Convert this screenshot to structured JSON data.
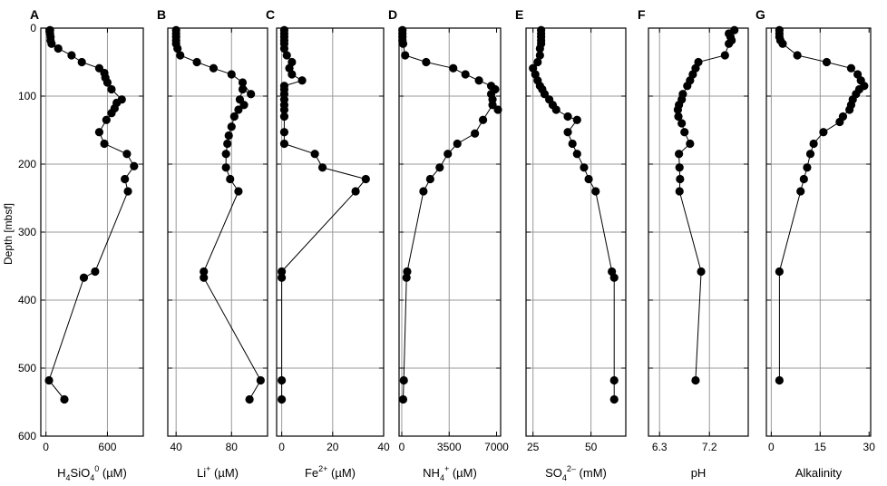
{
  "figure": {
    "ylabel": "Depth [mbsf]",
    "y_ticks": [
      0,
      100,
      200,
      300,
      400,
      500,
      600
    ],
    "y_range": [
      0,
      600
    ],
    "grid_color": "#999999",
    "line_color": "#000000",
    "marker_color": "#000000"
  },
  "chart_data": [
    {
      "type": "line",
      "panel": "A",
      "xlabel_main": "H",
      "xlabel_sub": "4",
      "xlabel_main2": "SiO",
      "xlabel_sub2": "4",
      "xlabel_sup": "0",
      "xlabel_unit": " (µM)",
      "xlim": [
        -50,
        950
      ],
      "x_ticks": [
        0,
        600
      ],
      "x_grid": [
        0,
        600
      ],
      "points": [
        {
          "x": 40,
          "y": 3
        },
        {
          "x": 40,
          "y": 8
        },
        {
          "x": 45,
          "y": 13
        },
        {
          "x": 45,
          "y": 18
        },
        {
          "x": 55,
          "y": 23
        },
        {
          "x": 120,
          "y": 30
        },
        {
          "x": 250,
          "y": 40
        },
        {
          "x": 350,
          "y": 50
        },
        {
          "x": 520,
          "y": 59
        },
        {
          "x": 570,
          "y": 66
        },
        {
          "x": 580,
          "y": 73
        },
        {
          "x": 600,
          "y": 80
        },
        {
          "x": 640,
          "y": 90
        },
        {
          "x": 740,
          "y": 105
        },
        {
          "x": 690,
          "y": 110
        },
        {
          "x": 670,
          "y": 118
        },
        {
          "x": 640,
          "y": 125
        },
        {
          "x": 590,
          "y": 135
        },
        {
          "x": 520,
          "y": 153
        },
        {
          "x": 570,
          "y": 170
        },
        {
          "x": 790,
          "y": 185
        },
        {
          "x": 860,
          "y": 203
        },
        {
          "x": 770,
          "y": 222
        },
        {
          "x": 800,
          "y": 240
        },
        {
          "x": 480,
          "y": 358
        },
        {
          "x": 370,
          "y": 367
        },
        {
          "x": 30,
          "y": 518
        },
        {
          "x": 180,
          "y": 546
        }
      ]
    },
    {
      "type": "line",
      "panel": "B",
      "xlabel_main": "Li",
      "xlabel_sup": "+",
      "xlabel_unit": " (µM)",
      "xlim": [
        34,
        106
      ],
      "x_ticks": [
        40,
        80
      ],
      "x_grid": [
        40,
        80
      ],
      "points": [
        {
          "x": 40,
          "y": 3
        },
        {
          "x": 40,
          "y": 8
        },
        {
          "x": 40,
          "y": 13
        },
        {
          "x": 40,
          "y": 18
        },
        {
          "x": 40,
          "y": 23
        },
        {
          "x": 41,
          "y": 30
        },
        {
          "x": 43,
          "y": 40
        },
        {
          "x": 55,
          "y": 50
        },
        {
          "x": 67,
          "y": 59
        },
        {
          "x": 80,
          "y": 68
        },
        {
          "x": 88,
          "y": 80
        },
        {
          "x": 94,
          "y": 97
        },
        {
          "x": 88,
          "y": 90
        },
        {
          "x": 86,
          "y": 105
        },
        {
          "x": 89,
          "y": 113
        },
        {
          "x": 85,
          "y": 120
        },
        {
          "x": 82,
          "y": 130
        },
        {
          "x": 80,
          "y": 145
        },
        {
          "x": 78,
          "y": 158
        },
        {
          "x": 77,
          "y": 170
        },
        {
          "x": 76,
          "y": 185
        },
        {
          "x": 76,
          "y": 205
        },
        {
          "x": 79,
          "y": 222
        },
        {
          "x": 85,
          "y": 240
        },
        {
          "x": 60,
          "y": 358
        },
        {
          "x": 60,
          "y": 367
        },
        {
          "x": 101,
          "y": 518
        },
        {
          "x": 93,
          "y": 546
        }
      ]
    },
    {
      "type": "line",
      "panel": "C",
      "xlabel_main": "Fe",
      "xlabel_sup": "2+",
      "xlabel_unit": " (µM)",
      "xlim": [
        -2,
        40
      ],
      "x_ticks": [
        0,
        20,
        40
      ],
      "x_grid": [
        0,
        20
      ],
      "points": [
        {
          "x": 1,
          "y": 3
        },
        {
          "x": 1,
          "y": 8
        },
        {
          "x": 1,
          "y": 13
        },
        {
          "x": 1,
          "y": 18
        },
        {
          "x": 1,
          "y": 23
        },
        {
          "x": 1,
          "y": 30
        },
        {
          "x": 2,
          "y": 40
        },
        {
          "x": 4,
          "y": 50
        },
        {
          "x": 3,
          "y": 59
        },
        {
          "x": 4,
          "y": 68
        },
        {
          "x": 8,
          "y": 77
        },
        {
          "x": 1,
          "y": 85
        },
        {
          "x": 1,
          "y": 90
        },
        {
          "x": 1,
          "y": 97
        },
        {
          "x": 1,
          "y": 105
        },
        {
          "x": 1,
          "y": 113
        },
        {
          "x": 1,
          "y": 120
        },
        {
          "x": 1,
          "y": 130
        },
        {
          "x": 1,
          "y": 153
        },
        {
          "x": 1,
          "y": 170
        },
        {
          "x": 13,
          "y": 185
        },
        {
          "x": 16,
          "y": 205
        },
        {
          "x": 33,
          "y": 222
        },
        {
          "x": 29,
          "y": 240
        },
        {
          "x": 0,
          "y": 358
        },
        {
          "x": 0,
          "y": 367
        },
        {
          "x": 0,
          "y": 518
        },
        {
          "x": 0,
          "y": 546
        }
      ]
    },
    {
      "type": "line",
      "panel": "D",
      "xlabel_main": "NH",
      "xlabel_sub": "4",
      "xlabel_sup": "+",
      "xlabel_unit": " (µM)",
      "xlim": [
        -200,
        7300
      ],
      "x_ticks": [
        0,
        3500,
        7000
      ],
      "x_grid": [
        0,
        3500
      ],
      "points": [
        {
          "x": 50,
          "y": 3
        },
        {
          "x": 50,
          "y": 8
        },
        {
          "x": 50,
          "y": 13
        },
        {
          "x": 50,
          "y": 18
        },
        {
          "x": 100,
          "y": 23
        },
        {
          "x": 250,
          "y": 40
        },
        {
          "x": 1800,
          "y": 50
        },
        {
          "x": 3800,
          "y": 59
        },
        {
          "x": 4700,
          "y": 68
        },
        {
          "x": 5700,
          "y": 77
        },
        {
          "x": 6600,
          "y": 85
        },
        {
          "x": 6900,
          "y": 90
        },
        {
          "x": 6600,
          "y": 97
        },
        {
          "x": 6700,
          "y": 105
        },
        {
          "x": 7100,
          "y": 120
        },
        {
          "x": 6700,
          "y": 113
        },
        {
          "x": 6000,
          "y": 135
        },
        {
          "x": 5400,
          "y": 155
        },
        {
          "x": 4100,
          "y": 170
        },
        {
          "x": 3400,
          "y": 185
        },
        {
          "x": 2800,
          "y": 205
        },
        {
          "x": 2100,
          "y": 222
        },
        {
          "x": 1600,
          "y": 240
        },
        {
          "x": 400,
          "y": 358
        },
        {
          "x": 350,
          "y": 367
        },
        {
          "x": 150,
          "y": 518
        },
        {
          "x": 100,
          "y": 546
        }
      ]
    },
    {
      "type": "line",
      "panel": "E",
      "xlabel_main": "SO",
      "xlabel_sub": "4",
      "xlabel_sup": "2–",
      "xlabel_unit": " (mM)",
      "xlim": [
        22,
        65
      ],
      "x_ticks": [
        25,
        50
      ],
      "x_grid": [
        25,
        50
      ],
      "points": [
        {
          "x": 28.5,
          "y": 3
        },
        {
          "x": 28.5,
          "y": 8
        },
        {
          "x": 28.5,
          "y": 13
        },
        {
          "x": 28.5,
          "y": 18
        },
        {
          "x": 28.5,
          "y": 23
        },
        {
          "x": 28,
          "y": 30
        },
        {
          "x": 28,
          "y": 40
        },
        {
          "x": 27,
          "y": 50
        },
        {
          "x": 25,
          "y": 59
        },
        {
          "x": 26,
          "y": 68
        },
        {
          "x": 27,
          "y": 77
        },
        {
          "x": 28,
          "y": 85
        },
        {
          "x": 29,
          "y": 90
        },
        {
          "x": 30,
          "y": 97
        },
        {
          "x": 32,
          "y": 105
        },
        {
          "x": 33.5,
          "y": 113
        },
        {
          "x": 35,
          "y": 120
        },
        {
          "x": 40,
          "y": 130
        },
        {
          "x": 44,
          "y": 135
        },
        {
          "x": 40,
          "y": 153
        },
        {
          "x": 42,
          "y": 170
        },
        {
          "x": 44,
          "y": 185
        },
        {
          "x": 47,
          "y": 205
        },
        {
          "x": 49,
          "y": 222
        },
        {
          "x": 52,
          "y": 240
        },
        {
          "x": 59,
          "y": 358
        },
        {
          "x": 60,
          "y": 367
        },
        {
          "x": 60,
          "y": 518
        },
        {
          "x": 60,
          "y": 546
        }
      ]
    },
    {
      "type": "line",
      "panel": "F",
      "xlabel_main": "pH",
      "xlim": [
        6.1,
        7.9
      ],
      "x_ticks": [
        6.3,
        7.2
      ],
      "x_tick_labels": [
        "6.3",
        "7.2"
      ],
      "x_grid": [
        6.3,
        7.2
      ],
      "points": [
        {
          "x": 7.65,
          "y": 3
        },
        {
          "x": 7.55,
          "y": 8
        },
        {
          "x": 7.58,
          "y": 13
        },
        {
          "x": 7.6,
          "y": 18
        },
        {
          "x": 7.55,
          "y": 23
        },
        {
          "x": 7.48,
          "y": 40
        },
        {
          "x": 7.0,
          "y": 50
        },
        {
          "x": 6.95,
          "y": 59
        },
        {
          "x": 6.9,
          "y": 68
        },
        {
          "x": 6.85,
          "y": 77
        },
        {
          "x": 6.8,
          "y": 85
        },
        {
          "x": 6.72,
          "y": 97
        },
        {
          "x": 6.7,
          "y": 105
        },
        {
          "x": 6.65,
          "y": 113
        },
        {
          "x": 6.63,
          "y": 120
        },
        {
          "x": 6.64,
          "y": 130
        },
        {
          "x": 6.7,
          "y": 140
        },
        {
          "x": 6.75,
          "y": 153
        },
        {
          "x": 6.85,
          "y": 170
        },
        {
          "x": 6.65,
          "y": 185
        },
        {
          "x": 6.66,
          "y": 205
        },
        {
          "x": 6.67,
          "y": 222
        },
        {
          "x": 6.66,
          "y": 240
        },
        {
          "x": 7.05,
          "y": 358
        },
        {
          "x": 6.95,
          "y": 518
        }
      ]
    },
    {
      "type": "line",
      "panel": "G",
      "xlabel_main": "Alkalinity",
      "xlim": [
        -1.5,
        30.5
      ],
      "x_ticks": [
        0,
        15,
        30
      ],
      "x_grid": [
        0,
        15
      ],
      "points": [
        {
          "x": 2.5,
          "y": 3
        },
        {
          "x": 2.5,
          "y": 8
        },
        {
          "x": 2.5,
          "y": 13
        },
        {
          "x": 2.8,
          "y": 18
        },
        {
          "x": 3.5,
          "y": 23
        },
        {
          "x": 8,
          "y": 40
        },
        {
          "x": 17,
          "y": 50
        },
        {
          "x": 24.5,
          "y": 59
        },
        {
          "x": 26.5,
          "y": 68
        },
        {
          "x": 27.5,
          "y": 77
        },
        {
          "x": 28.5,
          "y": 85
        },
        {
          "x": 27,
          "y": 90
        },
        {
          "x": 26,
          "y": 97
        },
        {
          "x": 25,
          "y": 105
        },
        {
          "x": 24.5,
          "y": 113
        },
        {
          "x": 24,
          "y": 120
        },
        {
          "x": 22,
          "y": 130
        },
        {
          "x": 21,
          "y": 138
        },
        {
          "x": 16,
          "y": 153
        },
        {
          "x": 13,
          "y": 170
        },
        {
          "x": 12,
          "y": 185
        },
        {
          "x": 11,
          "y": 205
        },
        {
          "x": 10,
          "y": 222
        },
        {
          "x": 9,
          "y": 240
        },
        {
          "x": 2.5,
          "y": 358
        },
        {
          "x": 2.5,
          "y": 518
        }
      ]
    }
  ]
}
